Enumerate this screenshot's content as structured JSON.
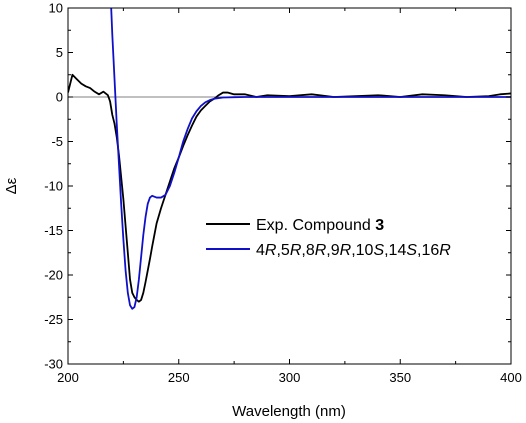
{
  "chart_data": {
    "type": "line",
    "title": "",
    "xlabel": "Wavelength (nm)",
    "ylabel": "Δε",
    "xlim": [
      200,
      400
    ],
    "ylim": [
      -30,
      10
    ],
    "x_ticks": [
      200,
      250,
      300,
      350,
      400
    ],
    "y_ticks": [
      -30,
      -25,
      -20,
      -15,
      -10,
      -5,
      0,
      5,
      10
    ],
    "zero_line": true,
    "grid": false,
    "legend_position": "center-right",
    "series": [
      {
        "name": "Exp. Compound 3",
        "name_parts": [
          "Exp. Compound ",
          "3"
        ],
        "color": "#000000",
        "x": [
          200,
          202,
          204,
          206,
          208,
          210,
          212,
          214,
          216,
          218,
          219,
          220,
          221,
          222,
          223,
          224,
          225,
          226,
          227,
          228,
          229,
          230,
          231,
          232,
          233,
          234,
          235,
          236,
          237,
          238,
          239,
          240,
          242,
          244,
          246,
          248,
          250,
          252,
          254,
          256,
          258,
          260,
          262,
          264,
          266,
          268,
          270,
          272,
          275,
          280,
          285,
          290,
          300,
          310,
          320,
          330,
          340,
          350,
          360,
          370,
          380,
          390,
          395,
          400
        ],
        "y": [
          0.5,
          2.5,
          2.0,
          1.5,
          1.2,
          1.0,
          0.6,
          0.3,
          0.6,
          0.2,
          -0.5,
          -2.0,
          -3.0,
          -4.5,
          -6.5,
          -9.0,
          -11.5,
          -14.5,
          -17.5,
          -20.5,
          -22.0,
          -22.5,
          -22.8,
          -23.0,
          -22.8,
          -22.0,
          -20.8,
          -19.5,
          -18.2,
          -16.8,
          -15.5,
          -14.2,
          -12.5,
          -11.0,
          -9.5,
          -8.0,
          -6.8,
          -5.5,
          -4.3,
          -3.2,
          -2.2,
          -1.5,
          -1.0,
          -0.5,
          -0.2,
          0.2,
          0.5,
          0.5,
          0.3,
          0.3,
          0.0,
          0.2,
          0.1,
          0.3,
          0.0,
          0.1,
          0.2,
          0.0,
          0.3,
          0.2,
          0.0,
          0.1,
          0.3,
          0.4
        ]
      },
      {
        "name": "4R,5R,8R,9R,10S,14S,16R",
        "name_parts": [
          "4",
          "R",
          ",5",
          "R",
          ",8",
          "R",
          ",9",
          "R",
          ",10",
          "S",
          ",14",
          "S",
          ",16",
          "R"
        ],
        "color": "#1010c8",
        "x": [
          219.5,
          220,
          221,
          222,
          223,
          224,
          225,
          226,
          227,
          228,
          229,
          230,
          231,
          232,
          233,
          234,
          235,
          236,
          237,
          238,
          239,
          240,
          242,
          244,
          246,
          248,
          250,
          252,
          254,
          256,
          258,
          260,
          262,
          264,
          266,
          268,
          270,
          275,
          280,
          290,
          300,
          320,
          350,
          400
        ],
        "y": [
          10,
          7.0,
          2.0,
          -3.0,
          -7.5,
          -12.0,
          -16.0,
          -19.5,
          -22.0,
          -23.4,
          -23.8,
          -23.6,
          -22.5,
          -20.5,
          -18.0,
          -15.5,
          -13.5,
          -12.0,
          -11.3,
          -11.1,
          -11.2,
          -11.3,
          -11.3,
          -11.0,
          -10.0,
          -8.5,
          -6.8,
          -5.0,
          -3.6,
          -2.4,
          -1.6,
          -1.0,
          -0.6,
          -0.35,
          -0.2,
          -0.12,
          -0.06,
          -0.02,
          0.0,
          0.0,
          0.0,
          0.0,
          0.0,
          0.0
        ]
      }
    ]
  }
}
